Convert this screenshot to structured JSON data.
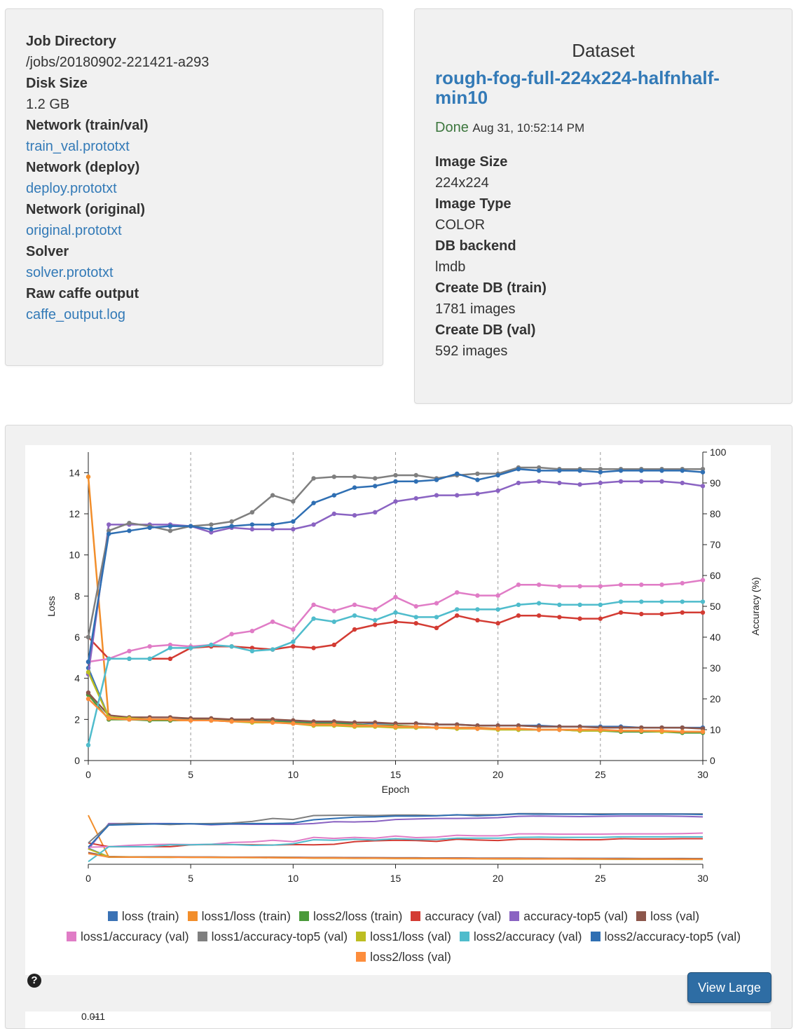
{
  "job": {
    "items": [
      {
        "label": "Job Directory",
        "value": "/jobs/20180902-221421-a293",
        "link": false
      },
      {
        "label": "Disk Size",
        "value": "1.2 GB",
        "link": false
      },
      {
        "label": "Network (train/val)",
        "value": "train_val.prototxt",
        "link": true
      },
      {
        "label": "Network (deploy)",
        "value": "deploy.prototxt",
        "link": true
      },
      {
        "label": "Network (original)",
        "value": "original.prototxt",
        "link": true
      },
      {
        "label": "Solver",
        "value": "solver.prototxt",
        "link": true
      },
      {
        "label": "Raw caffe output",
        "value": "caffe_output.log",
        "link": true
      }
    ]
  },
  "dataset": {
    "title": "Dataset",
    "name": "rough-fog-full-224x224-halfnhalf-min10",
    "status": "Done",
    "timestamp": "Aug 31, 10:52:14 PM",
    "items": [
      {
        "label": "Image Size",
        "value": "224x224"
      },
      {
        "label": "Image Type",
        "value": "COLOR"
      },
      {
        "label": "DB backend",
        "value": "lmdb"
      },
      {
        "label": "Create DB (train)",
        "value": "1781 images"
      },
      {
        "label": "Create DB (val)",
        "value": "592 images"
      }
    ]
  },
  "chart_panel": {
    "view_large_label": "View Large",
    "help_icon": "question-circle-icon",
    "next_chart_tick": "0.011"
  },
  "chart_data": {
    "type": "line",
    "xlabel": "Epoch",
    "ylabel_left": "Loss",
    "ylabel_right": "Accuracy (%)",
    "xlim": [
      0,
      30
    ],
    "ylim_left": [
      0,
      15
    ],
    "ylim_right": [
      0,
      100
    ],
    "x_ticks": [
      0,
      5,
      10,
      15,
      20,
      25,
      30
    ],
    "y_left_ticks": [
      0,
      2,
      4,
      6,
      8,
      10,
      12,
      14
    ],
    "y_right_ticks": [
      0,
      10,
      20,
      30,
      40,
      50,
      60,
      70,
      80,
      90,
      100
    ],
    "legend_position": "bottom",
    "x": [
      0,
      1,
      2,
      3,
      4,
      5,
      6,
      7,
      8,
      9,
      10,
      11,
      12,
      13,
      14,
      15,
      16,
      17,
      18,
      19,
      20,
      21,
      22,
      23,
      24,
      25,
      26,
      27,
      28,
      29,
      30
    ],
    "series": [
      {
        "name": "loss (train)",
        "color": "#3a72b5",
        "axis": "left",
        "values": [
          4.5,
          2.1,
          2.0,
          2.0,
          2.0,
          2.0,
          2.0,
          1.95,
          1.95,
          1.9,
          1.9,
          1.85,
          1.85,
          1.85,
          1.8,
          1.8,
          1.8,
          1.75,
          1.75,
          1.7,
          1.7,
          1.7,
          1.7,
          1.65,
          1.65,
          1.65,
          1.65,
          1.6,
          1.6,
          1.6,
          1.6
        ]
      },
      {
        "name": "loss1/loss (train)",
        "color": "#f28e2b",
        "axis": "left",
        "values": [
          13.8,
          2.0,
          2.0,
          2.0,
          1.95,
          1.95,
          1.95,
          1.9,
          1.9,
          1.85,
          1.85,
          1.8,
          1.75,
          1.75,
          1.7,
          1.7,
          1.65,
          1.6,
          1.6,
          1.6,
          1.55,
          1.55,
          1.5,
          1.5,
          1.5,
          1.45,
          1.45,
          1.45,
          1.4,
          1.4,
          1.4
        ]
      },
      {
        "name": "loss2/loss (train)",
        "color": "#4a9a3a",
        "axis": "left",
        "values": [
          3.2,
          2.0,
          2.0,
          1.95,
          1.95,
          2.0,
          1.95,
          1.95,
          1.9,
          1.9,
          1.85,
          1.8,
          1.8,
          1.75,
          1.7,
          1.7,
          1.65,
          1.6,
          1.6,
          1.55,
          1.55,
          1.5,
          1.5,
          1.5,
          1.45,
          1.45,
          1.4,
          1.4,
          1.4,
          1.35,
          1.35
        ]
      },
      {
        "name": "accuracy (val)",
        "color": "#d33b33",
        "axis": "right",
        "values": [
          40,
          33,
          33,
          33,
          33,
          36.5,
          37,
          37,
          36.5,
          36,
          37,
          36.5,
          37.5,
          42.5,
          44,
          45,
          44.5,
          43,
          47,
          45.5,
          44.5,
          47,
          47,
          46.5,
          46,
          46,
          48,
          47.5,
          47.5,
          48,
          48
        ]
      },
      {
        "name": "accuracy-top5 (val)",
        "color": "#8a63c2",
        "axis": "right",
        "values": [
          28,
          76.5,
          76.5,
          76.5,
          76.5,
          76,
          74,
          75.5,
          75,
          75,
          75,
          76.5,
          80,
          79.5,
          80.5,
          84,
          85,
          86,
          86,
          86.5,
          87.5,
          90,
          90.5,
          90,
          89.5,
          90,
          90.5,
          90.5,
          90.5,
          90,
          89
        ]
      },
      {
        "name": "loss (val)",
        "color": "#8c564b",
        "axis": "left",
        "values": [
          3.3,
          2.2,
          2.1,
          2.1,
          2.1,
          2.05,
          2.05,
          2.0,
          2.0,
          2.0,
          1.95,
          1.9,
          1.9,
          1.85,
          1.85,
          1.8,
          1.8,
          1.75,
          1.75,
          1.7,
          1.7,
          1.7,
          1.65,
          1.65,
          1.65,
          1.6,
          1.6,
          1.6,
          1.6,
          1.6,
          1.55
        ]
      },
      {
        "name": "loss1/accuracy (val)",
        "color": "#e07cc6",
        "axis": "right",
        "values": [
          32,
          33,
          35.5,
          37,
          37.5,
          37,
          37.5,
          41,
          42,
          45,
          42.5,
          50.5,
          48.5,
          50.5,
          49,
          53,
          50,
          51,
          54.5,
          53.5,
          53.5,
          57,
          57,
          56.5,
          56.5,
          56.5,
          57,
          57,
          57,
          57.5,
          58.5
        ]
      },
      {
        "name": "loss1/accuracy-top5 (val)",
        "color": "#7f7f7f",
        "axis": "right",
        "values": [
          40,
          74.5,
          77,
          76,
          74.5,
          76,
          76.5,
          77.5,
          80.5,
          86,
          84,
          91.5,
          92,
          92,
          91.5,
          92.5,
          92.5,
          91.5,
          92.5,
          93,
          93,
          95,
          95,
          94.5,
          94.5,
          94.5,
          94.5,
          94.5,
          94.5,
          94.5,
          94.5
        ]
      },
      {
        "name": "loss1/loss (val)",
        "color": "#bcbd22",
        "axis": "left",
        "values": [
          4.3,
          2.1,
          2.05,
          2.0,
          2.0,
          1.95,
          1.95,
          1.9,
          1.85,
          1.85,
          1.8,
          1.7,
          1.7,
          1.65,
          1.65,
          1.6,
          1.6,
          1.6,
          1.55,
          1.55,
          1.5,
          1.5,
          1.5,
          1.5,
          1.45,
          1.45,
          1.45,
          1.45,
          1.4,
          1.4,
          1.4
        ]
      },
      {
        "name": "loss2/accuracy (val)",
        "color": "#4fbccc",
        "axis": "right",
        "values": [
          5,
          33,
          33,
          33,
          36.5,
          36.5,
          37.5,
          37,
          35.5,
          36,
          38.5,
          46,
          45,
          47,
          45.5,
          48,
          46.5,
          46.5,
          49,
          49,
          49,
          50.5,
          51,
          50.5,
          50.5,
          50.5,
          51.5,
          51.5,
          51.5,
          51.5,
          51.5
        ]
      },
      {
        "name": "loss2/accuracy-top5 (val)",
        "color": "#2f6fb3",
        "axis": "right",
        "values": [
          32,
          73.5,
          74.5,
          75.5,
          76,
          76,
          75,
          76,
          76.5,
          76.5,
          77.5,
          83.5,
          86,
          88.5,
          89,
          90.5,
          90.5,
          91,
          93,
          91,
          92.5,
          94.5,
          94,
          94,
          94,
          93.5,
          94,
          94,
          94,
          94,
          93.5
        ]
      },
      {
        "name": "loss2/loss (val)",
        "color": "#fd8d3c",
        "axis": "left",
        "values": [
          3.0,
          2.05,
          2.0,
          2.0,
          2.0,
          1.95,
          1.95,
          1.9,
          1.9,
          1.85,
          1.8,
          1.75,
          1.75,
          1.7,
          1.7,
          1.65,
          1.65,
          1.6,
          1.6,
          1.55,
          1.55,
          1.55,
          1.5,
          1.5,
          1.5,
          1.5,
          1.45,
          1.45,
          1.45,
          1.4,
          1.4
        ]
      }
    ]
  }
}
